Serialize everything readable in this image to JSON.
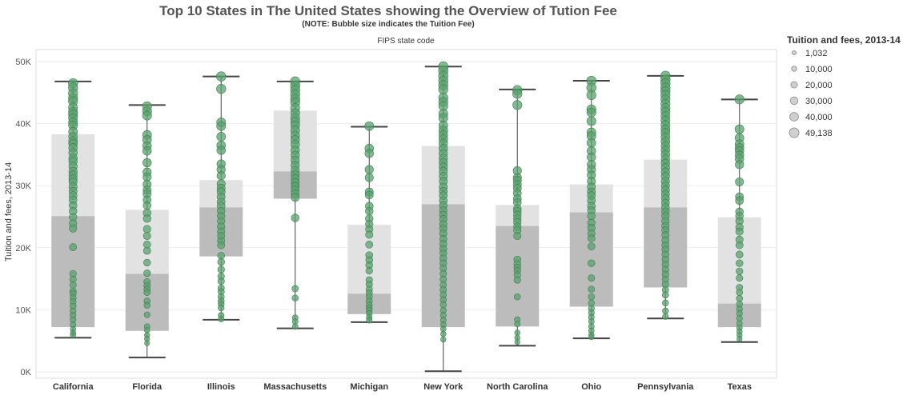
{
  "title": "Top 10 States in The United States showing the Overview of Tution Fee",
  "subtitle": "(NOTE: Bubble size indicates the Tuition Fee)",
  "panel_label": "FIPS state code",
  "legend": {
    "title": "Tuition and fees, 2013-14",
    "items": [
      "1,032",
      "10,000",
      "20,000",
      "30,000",
      "40,000",
      "49,138"
    ]
  },
  "colors": {
    "point": "#59a26e",
    "point_stroke": "#3f7e52",
    "box_upper": "#e2e2e2",
    "box_lower": "#bcbcbc",
    "whisker": "#444444",
    "grid": "#ebebeb",
    "legend_fill": "#cfcfcf",
    "legend_stroke": "#999999"
  },
  "chart_data": {
    "type": "box",
    "title": "Top 10 States in The United States showing the Overview of Tution Fee",
    "xlabel": "FIPS state code",
    "ylabel": "Tuition and fees, 2013-14",
    "ylim": [
      0,
      51500
    ],
    "yticks": [
      0,
      10000,
      20000,
      30000,
      40000,
      50000
    ],
    "ytick_labels": [
      "0K",
      "10K",
      "20K",
      "30K",
      "40K",
      "50K"
    ],
    "categories": [
      "California",
      "Florida",
      "Illinois",
      "Massachusetts",
      "Michigan",
      "New York",
      "North Carolina",
      "Ohio",
      "Pennsylvania",
      "Texas"
    ],
    "boxes": [
      {
        "name": "California",
        "min": 5500,
        "q1": 7200,
        "median": 25100,
        "q3": 38300,
        "max": 46800
      },
      {
        "name": "Florida",
        "min": 2300,
        "q1": 6600,
        "median": 15800,
        "q3": 26100,
        "max": 43000
      },
      {
        "name": "Illinois",
        "min": 8400,
        "q1": 18600,
        "median": 26500,
        "q3": 30900,
        "max": 47600
      },
      {
        "name": "Massachusetts",
        "min": 7000,
        "q1": 27900,
        "median": 32300,
        "q3": 42100,
        "max": 46800
      },
      {
        "name": "Michigan",
        "min": 8000,
        "q1": 9300,
        "median": 12600,
        "q3": 23700,
        "max": 39500
      },
      {
        "name": "New York",
        "min": 100,
        "q1": 7200,
        "median": 27000,
        "q3": 36400,
        "max": 49200
      },
      {
        "name": "North Carolina",
        "min": 4200,
        "q1": 7300,
        "median": 23500,
        "q3": 26900,
        "max": 45500
      },
      {
        "name": "Ohio",
        "min": 5400,
        "q1": 10500,
        "median": 25700,
        "q3": 30200,
        "max": 46900
      },
      {
        "name": "Pennsylvania",
        "min": 8600,
        "q1": 13600,
        "median": 26500,
        "q3": 34200,
        "max": 47700
      },
      {
        "name": "Texas",
        "min": 4800,
        "q1": 7200,
        "median": 11000,
        "q3": 24900,
        "max": 43900
      }
    ],
    "points": [
      {
        "name": "California",
        "values": [
          46500,
          45800,
          44900,
          44100,
          43600,
          42600,
          41900,
          41500,
          40900,
          40200,
          39700,
          38700,
          37900,
          37200,
          36800,
          36100,
          35300,
          34400,
          33900,
          33100,
          32300,
          31700,
          31100,
          30600,
          29800,
          29100,
          28400,
          27700,
          26800,
          25900,
          24900,
          23900,
          23100,
          20100,
          15800,
          14900,
          14000,
          13000,
          12600,
          11900,
          11300,
          10600,
          9800,
          9100,
          8400,
          7600,
          6900,
          6300,
          5900
        ]
      },
      {
        "name": "Florida",
        "values": [
          42800,
          42000,
          41300,
          38200,
          37400,
          36400,
          35600,
          33700,
          32200,
          31400,
          30200,
          29300,
          28700,
          27700,
          26800,
          25600,
          24700,
          23000,
          21900,
          20500,
          19500,
          17600,
          15900,
          14500,
          13900,
          13300,
          12800,
          11400,
          10700,
          9200,
          7300,
          6700,
          5900,
          5300,
          4600
        ]
      },
      {
        "name": "Illinois",
        "values": [
          47600,
          45600,
          40200,
          39600,
          37900,
          36500,
          35700,
          33500,
          32600,
          31600,
          30300,
          29600,
          29000,
          28200,
          27400,
          26700,
          25900,
          25100,
          24300,
          23400,
          22600,
          21900,
          21100,
          20400,
          18700,
          17700,
          16500,
          15400,
          14600,
          13500,
          12900,
          12100,
          11400,
          10900,
          10300,
          9100,
          8500
        ]
      },
      {
        "name": "Massachusetts",
        "values": [
          46800,
          46100,
          45400,
          44700,
          44000,
          43400,
          42500,
          41700,
          40900,
          40300,
          39700,
          38900,
          38100,
          37400,
          36600,
          35700,
          34900,
          34100,
          33300,
          32500,
          31800,
          31100,
          30500,
          29900,
          29300,
          28700,
          28100,
          24800,
          13400,
          11900,
          8700,
          8100,
          7300
        ]
      },
      {
        "name": "Michigan",
        "values": [
          39600,
          36000,
          35200,
          32600,
          31300,
          29000,
          28500,
          26700,
          25900,
          24700,
          23800,
          23000,
          22100,
          20500,
          18800,
          18000,
          17200,
          16300,
          14800,
          14100,
          13300,
          12700,
          12100,
          11400,
          10800,
          10300,
          9900,
          9400,
          8800,
          8300
        ]
      },
      {
        "name": "New York",
        "values": [
          49200,
          48500,
          47700,
          46900,
          46200,
          45500,
          44200,
          43500,
          42800,
          41600,
          40900,
          39700,
          38900,
          38200,
          37500,
          36800,
          36000,
          35200,
          34400,
          33700,
          33000,
          32300,
          31500,
          30700,
          29800,
          29100,
          28400,
          27600,
          26800,
          26000,
          25300,
          24600,
          23800,
          23100,
          22300,
          21400,
          20600,
          19800,
          19100,
          18300,
          17500,
          16700,
          15800,
          14900,
          14000,
          13200,
          12400,
          11600,
          10800,
          9900,
          9100,
          8300,
          7600,
          6900,
          6100,
          5200
        ]
      },
      {
        "name": "North Carolina",
        "values": [
          45400,
          44800,
          43000,
          32400,
          31300,
          30900,
          30200,
          29600,
          28800,
          27900,
          27300,
          26300,
          25900,
          25300,
          24700,
          24100,
          23400,
          22800,
          21900,
          18100,
          17400,
          16800,
          16300,
          15600,
          14800,
          12100,
          8400,
          7700,
          6300,
          5500,
          4800
        ]
      },
      {
        "name": "Ohio",
        "values": [
          46900,
          45800,
          44600,
          42300,
          41800,
          40400,
          38600,
          38000,
          36900,
          35600,
          34600,
          33400,
          32600,
          31700,
          30700,
          29800,
          29000,
          28400,
          27600,
          26700,
          26000,
          25100,
          24000,
          23200,
          22300,
          21500,
          20200,
          17500,
          15100,
          13300,
          12100,
          11100,
          10200,
          9500,
          8800,
          8100,
          7300,
          6600,
          6000,
          5600
        ]
      },
      {
        "name": "Pennsylvania",
        "values": [
          47700,
          47100,
          46500,
          45800,
          45200,
          44600,
          43900,
          43200,
          42500,
          41900,
          41200,
          40500,
          39800,
          39100,
          38500,
          37800,
          37100,
          36400,
          35700,
          35000,
          34300,
          33600,
          32900,
          32200,
          31500,
          30700,
          30000,
          29300,
          28600,
          27900,
          27200,
          26500,
          25800,
          25100,
          24300,
          23500,
          22800,
          22000,
          21200,
          20400,
          19700,
          18900,
          18100,
          17300,
          16500,
          15700,
          14900,
          14100,
          13200,
          12400,
          11100,
          9800,
          8900
        ]
      },
      {
        "name": "Texas",
        "values": [
          43900,
          39100,
          37700,
          36700,
          36100,
          35600,
          34900,
          34300,
          33400,
          30600,
          28200,
          27600,
          25800,
          25100,
          24300,
          23300,
          22600,
          21300,
          20400,
          18900,
          17500,
          16200,
          15100,
          13600,
          12800,
          11800,
          10900,
          10100,
          9400,
          8600,
          7800,
          7100,
          6500,
          5900,
          5300
        ]
      }
    ]
  }
}
